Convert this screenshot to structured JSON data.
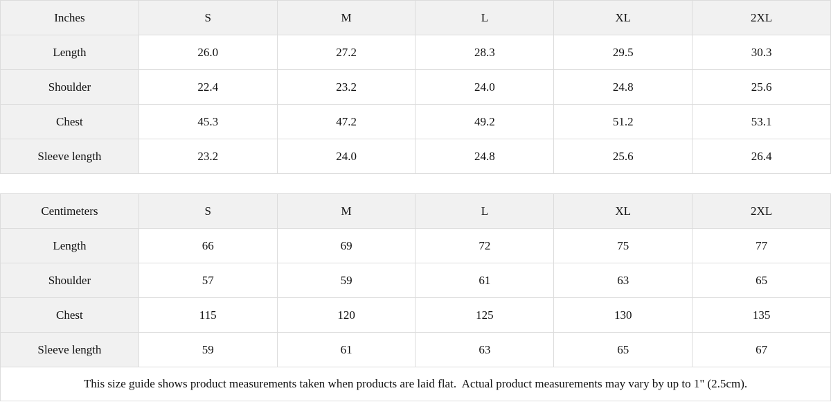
{
  "chart_data": [
    {
      "type": "table",
      "title": "Inches",
      "columns": [
        "Inches",
        "S",
        "M",
        "L",
        "XL",
        "2XL"
      ],
      "rows": [
        [
          "Length",
          "26.0",
          "27.2",
          "28.3",
          "29.5",
          "30.3"
        ],
        [
          "Shoulder",
          "22.4",
          "23.2",
          "24.0",
          "24.8",
          "25.6"
        ],
        [
          "Chest",
          "45.3",
          "47.2",
          "49.2",
          "51.2",
          "53.1"
        ],
        [
          "Sleeve length",
          "23.2",
          "24.0",
          "24.8",
          "25.6",
          "26.4"
        ]
      ]
    },
    {
      "type": "table",
      "title": "Centimeters",
      "columns": [
        "Centimeters",
        "S",
        "M",
        "L",
        "XL",
        "2XL"
      ],
      "rows": [
        [
          "Length",
          "66",
          "69",
          "72",
          "75",
          "77"
        ],
        [
          "Shoulder",
          "57",
          "59",
          "61",
          "63",
          "65"
        ],
        [
          "Chest",
          "115",
          "120",
          "125",
          "130",
          "135"
        ],
        [
          "Sleeve length",
          "59",
          "61",
          "63",
          "65",
          "67"
        ]
      ]
    }
  ],
  "footer": {
    "note": "This size guide shows product measurements taken when products are laid flat.  Actual product measurements may vary by up to 1\" (2.5cm)."
  },
  "colors": {
    "header_bg": "#f1f1f1",
    "cell_bg": "#ffffff",
    "border": "#dcdcdc",
    "text": "#111111"
  }
}
